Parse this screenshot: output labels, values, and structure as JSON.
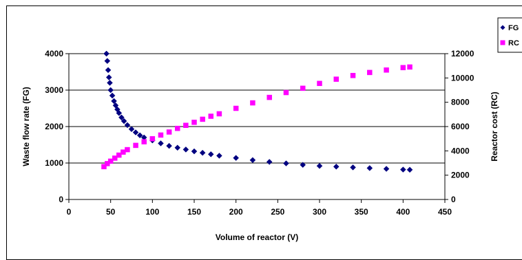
{
  "chart_data": {
    "type": "scatter",
    "xlabel": "Volume of reactor (V)",
    "ylabel_left": "Waste flow rate (FG)",
    "ylabel_right": "Reactor cost (RC)",
    "xlim": [
      0,
      450
    ],
    "ylim_left": [
      0,
      4000
    ],
    "ylim_right": [
      0,
      12000
    ],
    "x_ticks": [
      "0",
      "50",
      "100",
      "150",
      "200",
      "250",
      "300",
      "350",
      "400",
      "450"
    ],
    "y_ticks_left": [
      "0",
      "1000",
      "2000",
      "3000",
      "4000"
    ],
    "y_ticks_right": [
      "0",
      "2000",
      "4000",
      "6000",
      "8000",
      "10000",
      "12000"
    ],
    "grid": "horizontal major gridlines",
    "legend_position": "right",
    "series": [
      {
        "name": "FG",
        "axis": "left",
        "marker": "diamond",
        "color": "#000080",
        "x": [
          45,
          46,
          47,
          48,
          49,
          50,
          52,
          54,
          56,
          58,
          60,
          63,
          66,
          70,
          75,
          80,
          85,
          90,
          100,
          110,
          120,
          130,
          140,
          150,
          160,
          170,
          180,
          200,
          220,
          240,
          260,
          280,
          300,
          320,
          340,
          360,
          380,
          400,
          408
        ],
        "y": [
          4000,
          3800,
          3550,
          3350,
          3200,
          3000,
          2850,
          2700,
          2580,
          2470,
          2370,
          2250,
          2150,
          2040,
          1930,
          1840,
          1760,
          1700,
          1620,
          1540,
          1470,
          1420,
          1370,
          1320,
          1280,
          1240,
          1200,
          1140,
          1080,
          1030,
          990,
          950,
          920,
          900,
          880,
          860,
          840,
          820,
          815
        ]
      },
      {
        "name": "RC",
        "axis": "right",
        "marker": "square",
        "color": "#ff00ff",
        "x": [
          42,
          46,
          50,
          55,
          60,
          65,
          70,
          80,
          90,
          100,
          110,
          120,
          130,
          140,
          150,
          160,
          170,
          180,
          200,
          220,
          240,
          260,
          280,
          300,
          320,
          340,
          360,
          380,
          400,
          408
        ],
        "y": [
          2700,
          2950,
          3150,
          3400,
          3650,
          3900,
          4100,
          4450,
          4750,
          5000,
          5300,
          5550,
          5850,
          6100,
          6350,
          6600,
          6850,
          7050,
          7500,
          7950,
          8400,
          8800,
          9150,
          9550,
          9900,
          10200,
          10450,
          10650,
          10850,
          10900
        ]
      }
    ]
  }
}
